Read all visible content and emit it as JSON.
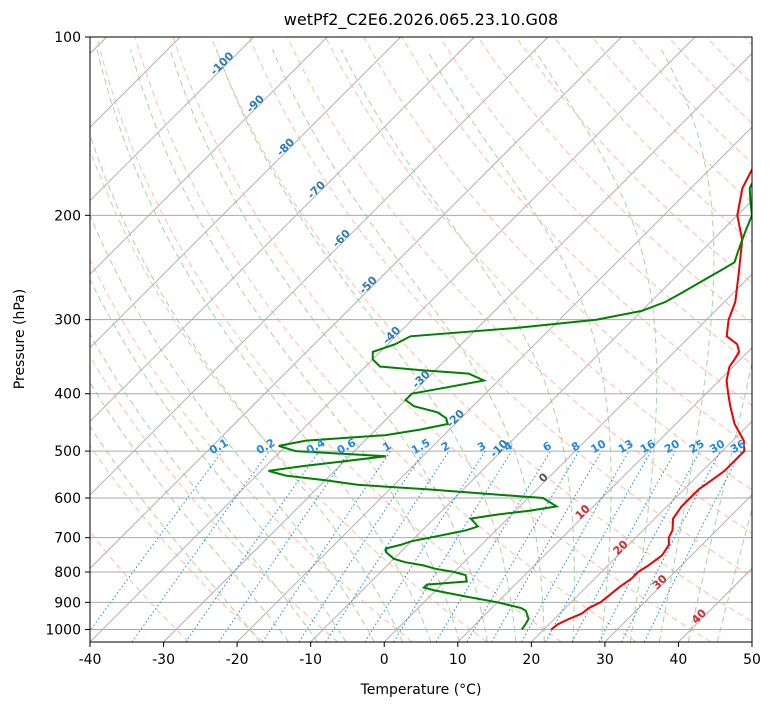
{
  "chart_data": {
    "type": "line",
    "title": "wetPf2_C2E6.2026.065.23.10.G08",
    "xlabel": "Temperature (°C)",
    "ylabel": "Pressure (hPa)",
    "xlim": [
      -40,
      50
    ],
    "ylim": [
      1050,
      100
    ],
    "y_scale": "log",
    "x_ticks": [
      -40,
      -30,
      -20,
      -10,
      0,
      10,
      20,
      30,
      40,
      50
    ],
    "y_ticks": [
      1000,
      900,
      800,
      700,
      600,
      500,
      400,
      300,
      200,
      100
    ],
    "grid": true,
    "skew_t": true,
    "colors": {
      "temperature": "#ee0000",
      "dewpoint": "#008000",
      "mixing_ratio": "#1e88e5",
      "mixing_ratio_label": "#1e88e5",
      "isotherm_label": "#2c7bb6",
      "dry_adiabat": "#ff9f80",
      "moist_adiabat": "#90c890",
      "grid": "#aaaaaa"
    },
    "isotherm_labels": [
      {
        "text": "-100",
        "value": -100,
        "pressure": 112
      },
      {
        "text": "-90",
        "value": -90,
        "pressure": 131
      },
      {
        "text": "-80",
        "value": -80,
        "pressure": 155
      },
      {
        "text": "-70",
        "value": -70,
        "pressure": 183
      },
      {
        "text": "-60",
        "value": -60,
        "pressure": 221
      },
      {
        "text": "-50",
        "value": -50,
        "pressure": 265
      },
      {
        "text": "-40",
        "value": -40,
        "pressure": 322
      },
      {
        "text": "-30",
        "value": -30,
        "pressure": 382
      },
      {
        "text": "-20",
        "value": -20,
        "pressure": 445
      },
      {
        "text": "-10",
        "value": -10,
        "pressure": 500
      },
      {
        "text": "0",
        "value": 0,
        "pressure": 560
      },
      {
        "text": "10",
        "value": 10,
        "pressure": 640
      },
      {
        "text": "20",
        "value": 20,
        "pressure": 735
      },
      {
        "text": "30",
        "value": 30,
        "pressure": 840
      },
      {
        "text": "40",
        "value": 40,
        "pressure": 960
      }
    ],
    "mixing_ratio_labels": [
      "0.1",
      "0.2",
      "0.4",
      "0.6",
      "1",
      "1.5",
      "2",
      "3",
      "4",
      "6",
      "8",
      "10",
      "13",
      "16",
      "20",
      "25",
      "30",
      "36"
    ],
    "series": [
      {
        "name": "Temperature",
        "points": [
          [
            1000,
            21
          ],
          [
            980,
            21.2
          ],
          [
            960,
            22
          ],
          [
            940,
            23
          ],
          [
            920,
            23.2
          ],
          [
            900,
            24
          ],
          [
            880,
            24.2
          ],
          [
            850,
            24.5
          ],
          [
            820,
            25
          ],
          [
            800,
            25
          ],
          [
            780,
            25.5
          ],
          [
            750,
            26
          ],
          [
            720,
            25.5
          ],
          [
            700,
            24.5
          ],
          [
            680,
            24
          ],
          [
            650,
            22.5
          ],
          [
            620,
            22
          ],
          [
            600,
            22
          ],
          [
            580,
            22
          ],
          [
            560,
            22.5
          ],
          [
            540,
            23
          ],
          [
            520,
            23
          ],
          [
            500,
            23
          ],
          [
            480,
            21.5
          ],
          [
            450,
            18
          ],
          [
            420,
            15
          ],
          [
            400,
            13
          ],
          [
            380,
            11
          ],
          [
            360,
            9.5
          ],
          [
            350,
            9.2
          ],
          [
            340,
            8.8
          ],
          [
            330,
            7.5
          ],
          [
            320,
            5
          ],
          [
            300,
            3
          ],
          [
            280,
            1.5
          ],
          [
            250,
            -2
          ],
          [
            220,
            -6
          ],
          [
            200,
            -10
          ],
          [
            180,
            -13
          ],
          [
            160,
            -15
          ],
          [
            150,
            -16.5
          ],
          [
            140,
            -18
          ],
          [
            130,
            -20
          ],
          [
            120,
            -23
          ],
          [
            110,
            -26
          ],
          [
            105,
            -27
          ],
          [
            100,
            -28
          ]
        ]
      },
      {
        "name": "Dewpoint",
        "points": [
          [
            1000,
            17
          ],
          [
            980,
            16.8
          ],
          [
            960,
            16.5
          ],
          [
            950,
            16
          ],
          [
            930,
            15
          ],
          [
            920,
            14
          ],
          [
            900,
            10
          ],
          [
            880,
            5
          ],
          [
            860,
            0
          ],
          [
            850,
            -2
          ],
          [
            840,
            -2
          ],
          [
            830,
            3
          ],
          [
            810,
            2
          ],
          [
            800,
            0
          ],
          [
            790,
            -3
          ],
          [
            780,
            -5
          ],
          [
            770,
            -8
          ],
          [
            760,
            -10
          ],
          [
            740,
            -12
          ],
          [
            730,
            -12.5
          ],
          [
            720,
            -11
          ],
          [
            710,
            -10
          ],
          [
            700,
            -8
          ],
          [
            690,
            -6
          ],
          [
            680,
            -4
          ],
          [
            670,
            -3
          ],
          [
            660,
            -4
          ],
          [
            650,
            -5
          ],
          [
            640,
            -2
          ],
          [
            630,
            2
          ],
          [
            620,
            5
          ],
          [
            600,
            2
          ],
          [
            580,
            -15
          ],
          [
            570,
            -25
          ],
          [
            560,
            -30
          ],
          [
            550,
            -36
          ],
          [
            540,
            -39
          ],
          [
            530,
            -35
          ],
          [
            520,
            -30
          ],
          [
            510,
            -25
          ],
          [
            500,
            -38
          ],
          [
            490,
            -41
          ],
          [
            480,
            -38
          ],
          [
            470,
            -28
          ],
          [
            460,
            -24
          ],
          [
            450,
            -21
          ],
          [
            440,
            -22
          ],
          [
            430,
            -24
          ],
          [
            420,
            -28
          ],
          [
            410,
            -30
          ],
          [
            400,
            -30
          ],
          [
            390,
            -26
          ],
          [
            380,
            -22
          ],
          [
            370,
            -25
          ],
          [
            365,
            -32
          ],
          [
            360,
            -38
          ],
          [
            350,
            -40
          ],
          [
            340,
            -41
          ],
          [
            330,
            -39
          ],
          [
            320,
            -38
          ],
          [
            310,
            -25
          ],
          [
            300,
            -15
          ],
          [
            290,
            -10
          ],
          [
            280,
            -8
          ],
          [
            270,
            -7
          ],
          [
            260,
            -6
          ],
          [
            250,
            -5
          ],
          [
            240,
            -4
          ],
          [
            230,
            -5
          ],
          [
            220,
            -6
          ],
          [
            210,
            -7
          ],
          [
            200,
            -8
          ],
          [
            190,
            -10
          ],
          [
            180,
            -12
          ],
          [
            170,
            -13
          ],
          [
            160,
            -14
          ],
          [
            150,
            -15
          ],
          [
            140,
            -16
          ],
          [
            130,
            -16.5
          ],
          [
            125,
            -17
          ],
          [
            120,
            -17.5
          ],
          [
            115,
            -18
          ],
          [
            110,
            -18
          ],
          [
            105,
            -19
          ],
          [
            100,
            -20
          ]
        ]
      }
    ]
  }
}
